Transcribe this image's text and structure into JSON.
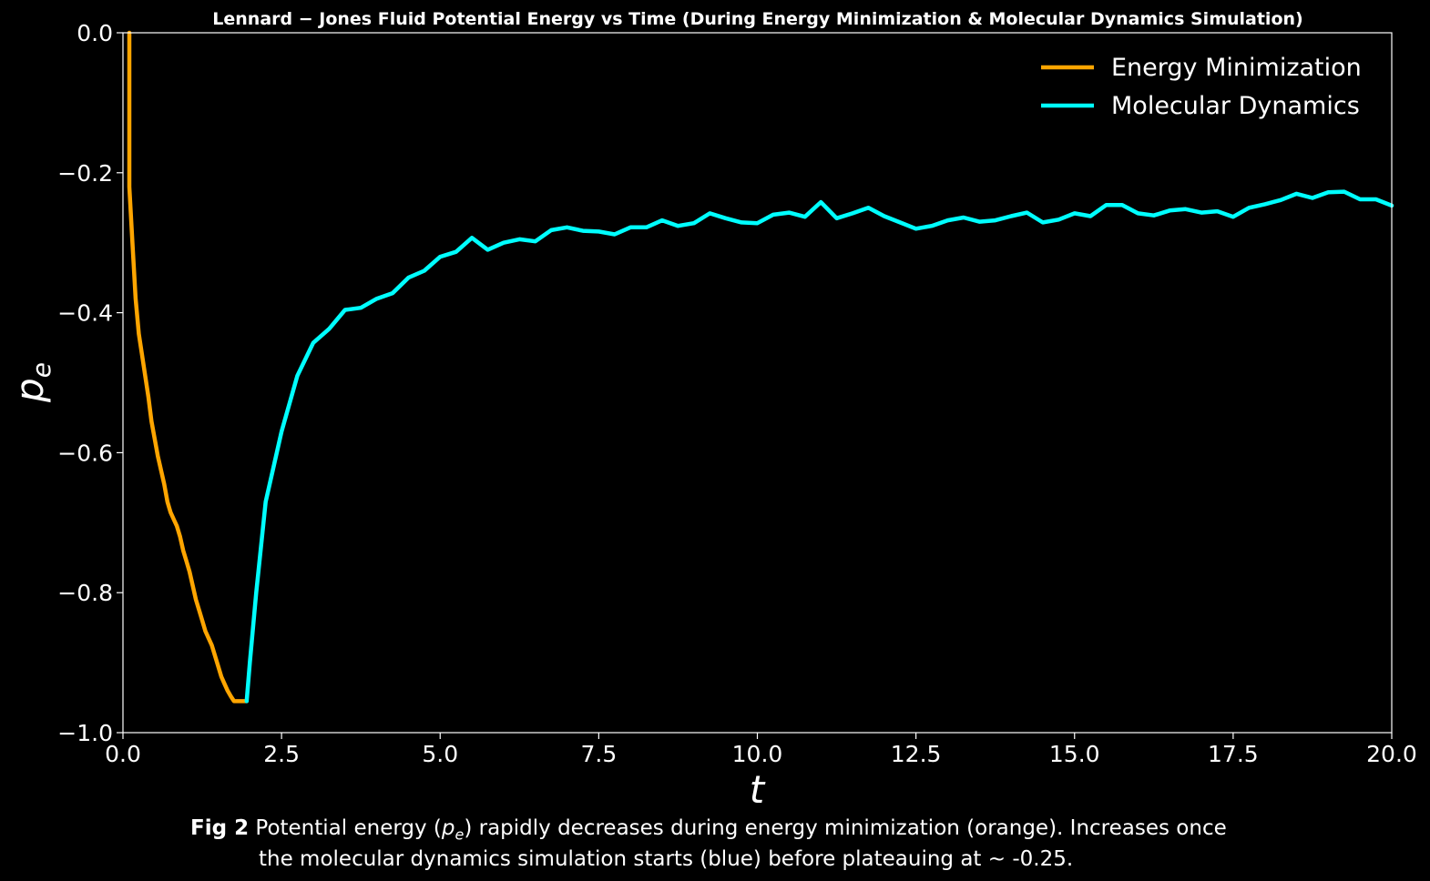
{
  "chart_data": {
    "type": "line",
    "title": "Lennard − Jones Fluid Potential Energy vs Time (During Energy Minimization & Molecular Dynamics Simulation)",
    "xlabel": "t",
    "ylabel_main": "p",
    "ylabel_sub": "e",
    "xlim": [
      0,
      20
    ],
    "ylim": [
      -1.0,
      0.0
    ],
    "xticks": [
      "0.0",
      "2.5",
      "5.0",
      "7.5",
      "10.0",
      "12.5",
      "15.0",
      "17.5",
      "20.0"
    ],
    "xtick_values": [
      0,
      2.5,
      5,
      7.5,
      10,
      12.5,
      15,
      17.5,
      20
    ],
    "yticks": [
      "0.0",
      "−0.2",
      "−0.4",
      "−0.6",
      "−0.8",
      "−1.0"
    ],
    "ytick_values": [
      0,
      -0.2,
      -0.4,
      -0.6,
      -0.8,
      -1.0
    ],
    "grid": false,
    "legend_position": "top-right",
    "series": [
      {
        "name": "Energy Minimization",
        "color": "#ffa500",
        "x": [
          0.1,
          0.1,
          0.1,
          0.15,
          0.2,
          0.25,
          0.3,
          0.35,
          0.4,
          0.45,
          0.5,
          0.55,
          0.6,
          0.65,
          0.7,
          0.75,
          0.8,
          0.85,
          0.9,
          0.95,
          1.0,
          1.05,
          1.1,
          1.15,
          1.2,
          1.25,
          1.3,
          1.35,
          1.4,
          1.45,
          1.5,
          1.55,
          1.6,
          1.65,
          1.7,
          1.75,
          1.8,
          1.85,
          1.9,
          1.95
        ],
        "y": [
          0.0,
          -0.1,
          -0.22,
          -0.3,
          -0.38,
          -0.43,
          -0.46,
          -0.49,
          -0.52,
          -0.555,
          -0.58,
          -0.605,
          -0.625,
          -0.645,
          -0.67,
          -0.685,
          -0.695,
          -0.705,
          -0.72,
          -0.74,
          -0.755,
          -0.77,
          -0.79,
          -0.81,
          -0.825,
          -0.84,
          -0.855,
          -0.865,
          -0.875,
          -0.89,
          -0.905,
          -0.92,
          -0.93,
          -0.94,
          -0.948,
          -0.955,
          -0.955,
          -0.955,
          -0.955,
          -0.955
        ]
      },
      {
        "name": "Molecular Dynamics",
        "color": "#00ffff",
        "x": [
          1.95,
          2.0,
          2.1,
          2.25,
          2.5,
          2.75,
          3.0,
          3.25,
          3.5,
          3.75,
          4.0,
          4.25,
          4.5,
          4.75,
          5.0,
          5.25,
          5.5,
          5.75,
          6.0,
          6.25,
          6.5,
          6.75,
          7.0,
          7.25,
          7.5,
          7.75,
          8.0,
          8.25,
          8.5,
          8.75,
          9.0,
          9.25,
          9.5,
          9.75,
          10.0,
          10.25,
          10.5,
          10.75,
          11.0,
          11.25,
          11.5,
          11.75,
          12.0,
          12.25,
          12.5,
          12.75,
          13.0,
          13.25,
          13.5,
          13.75,
          14.0,
          14.25,
          14.5,
          14.75,
          15.0,
          15.25,
          15.5,
          15.75,
          16.0,
          16.25,
          16.5,
          16.75,
          17.0,
          17.25,
          17.5,
          17.75,
          18.0,
          18.25,
          18.5,
          18.75,
          19.0,
          19.25,
          19.5,
          19.75,
          20.0
        ],
        "y": [
          -0.955,
          -0.9,
          -0.8,
          -0.67,
          -0.57,
          -0.49,
          -0.443,
          -0.423,
          -0.396,
          -0.393,
          -0.38,
          -0.372,
          -0.35,
          -0.34,
          -0.32,
          -0.313,
          -0.293,
          -0.31,
          -0.3,
          -0.295,
          -0.298,
          -0.282,
          -0.278,
          -0.283,
          -0.284,
          -0.288,
          -0.278,
          -0.278,
          -0.268,
          -0.276,
          -0.272,
          -0.258,
          -0.265,
          -0.271,
          -0.272,
          -0.26,
          -0.257,
          -0.263,
          -0.242,
          -0.265,
          -0.258,
          -0.25,
          -0.262,
          -0.271,
          -0.28,
          -0.276,
          -0.268,
          -0.264,
          -0.27,
          -0.268,
          -0.262,
          -0.257,
          -0.271,
          -0.267,
          -0.258,
          -0.262,
          -0.246,
          -0.246,
          -0.258,
          -0.261,
          -0.254,
          -0.252,
          -0.257,
          -0.255,
          -0.263,
          -0.25,
          -0.245,
          -0.239,
          -0.23,
          -0.236,
          -0.228,
          -0.227,
          -0.238,
          -0.238,
          -0.247
        ]
      }
    ]
  },
  "caption": {
    "label": "Fig 2",
    "text_line1_a": " Potential energy (",
    "text_pe_main": "p",
    "text_pe_sub": "e",
    "text_line1_b": ") rapidly decreases during energy minimization (orange). Increases once",
    "text_line2": "the molecular dynamics simulation starts (blue) before plateauing at ~ -0.25."
  }
}
